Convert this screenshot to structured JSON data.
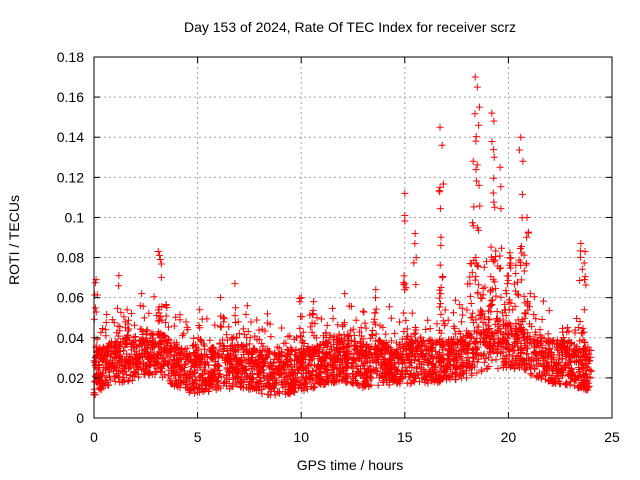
{
  "chart_data": {
    "type": "scatter",
    "title": "Day 153 of 2024, Rate Of TEC Index for receiver scrz",
    "xlabel": "GPS time / hours",
    "ylabel": "ROTI / TECUs",
    "xlim": [
      0,
      25
    ],
    "ylim": [
      0,
      0.18
    ],
    "x_ticks": [
      0,
      5,
      10,
      15,
      20,
      25
    ],
    "x_tick_labels": [
      "0",
      "5",
      "10",
      "15",
      "20",
      "25"
    ],
    "y_ticks": [
      0,
      0.02,
      0.04,
      0.06,
      0.08,
      0.1,
      0.12,
      0.14,
      0.16,
      0.18
    ],
    "y_tick_labels": [
      "0",
      "0.02",
      "0.04",
      "0.06",
      "0.08",
      "0.1",
      "0.12",
      "0.14",
      "0.16",
      "0.18"
    ],
    "grid": true,
    "marker": "+",
    "color": "#ff0000",
    "series": [
      {
        "name": "ROTI",
        "baseline_profile": [
          [
            0,
            0.022
          ],
          [
            0.5,
            0.026
          ],
          [
            1,
            0.028
          ],
          [
            2,
            0.03
          ],
          [
            3,
            0.033
          ],
          [
            4,
            0.026
          ],
          [
            5,
            0.022
          ],
          [
            6,
            0.025
          ],
          [
            7,
            0.026
          ],
          [
            8,
            0.023
          ],
          [
            9,
            0.022
          ],
          [
            10,
            0.024
          ],
          [
            11,
            0.027
          ],
          [
            12,
            0.029
          ],
          [
            13,
            0.026
          ],
          [
            14,
            0.027
          ],
          [
            15,
            0.028
          ],
          [
            16,
            0.028
          ],
          [
            17,
            0.029
          ],
          [
            18,
            0.031
          ],
          [
            19,
            0.035
          ],
          [
            20,
            0.036
          ],
          [
            21,
            0.033
          ],
          [
            22,
            0.028
          ],
          [
            23,
            0.027
          ],
          [
            24,
            0.024
          ]
        ],
        "peaks": [
          {
            "x": 0.1,
            "y": 0.069
          },
          {
            "x": 1.2,
            "y": 0.071
          },
          {
            "x": 1.6,
            "y": 0.054
          },
          {
            "x": 2.3,
            "y": 0.062
          },
          {
            "x": 3.1,
            "y": 0.083
          },
          {
            "x": 3.2,
            "y": 0.079
          },
          {
            "x": 5.1,
            "y": 0.054
          },
          {
            "x": 6.1,
            "y": 0.06
          },
          {
            "x": 6.8,
            "y": 0.067
          },
          {
            "x": 7.4,
            "y": 0.056
          },
          {
            "x": 10.0,
            "y": 0.06
          },
          {
            "x": 10.6,
            "y": 0.058
          },
          {
            "x": 12.1,
            "y": 0.062
          },
          {
            "x": 13.6,
            "y": 0.064
          },
          {
            "x": 15.0,
            "y": 0.112
          },
          {
            "x": 15.0,
            "y": 0.101
          },
          {
            "x": 15.5,
            "y": 0.092
          },
          {
            "x": 16.7,
            "y": 0.145
          },
          {
            "x": 16.8,
            "y": 0.136
          },
          {
            "x": 16.7,
            "y": 0.115
          },
          {
            "x": 18.4,
            "y": 0.17
          },
          {
            "x": 18.5,
            "y": 0.165
          },
          {
            "x": 18.6,
            "y": 0.155
          },
          {
            "x": 18.3,
            "y": 0.128
          },
          {
            "x": 19.2,
            "y": 0.152
          },
          {
            "x": 19.3,
            "y": 0.148
          },
          {
            "x": 19.6,
            "y": 0.125
          },
          {
            "x": 20.6,
            "y": 0.14
          },
          {
            "x": 20.7,
            "y": 0.128
          },
          {
            "x": 20.9,
            "y": 0.1
          },
          {
            "x": 23.5,
            "y": 0.087
          },
          {
            "x": 23.7,
            "y": 0.083
          }
        ]
      }
    ]
  }
}
